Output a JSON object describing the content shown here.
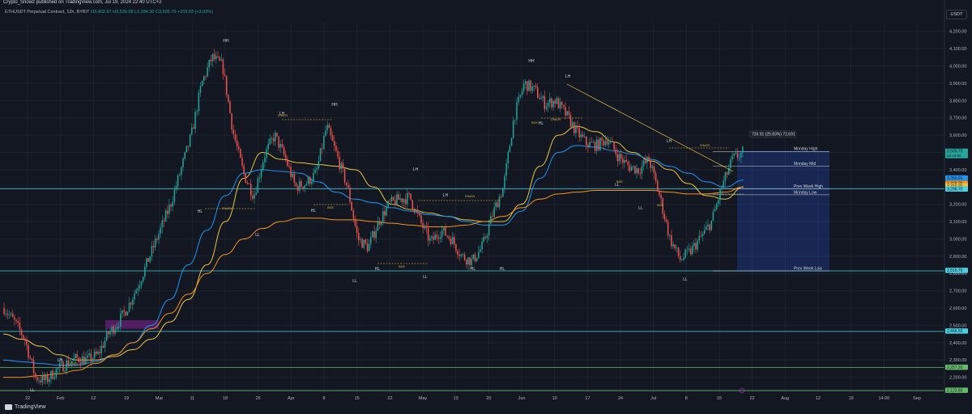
{
  "header": {
    "published": "Crypto_Snowz published on TradingView.com, Jul 19, 2024 22:40 UTC+2",
    "symbol": "ETHUSDT Perpetual Contract, 12h, BYBIT",
    "o_label": "O",
    "ohlc": "3,402.67 H3,539.98 L3,394.30 C3,505.70 +103.03 (+3.03%)",
    "currency": "USDT"
  },
  "footer": {
    "brand": "TradingView"
  },
  "chart_data": {
    "type": "candlestick",
    "timeframe": "12h",
    "ylim": [
      2100,
      4250
    ],
    "y_ticks": [
      "2,200.00",
      "2,300.00",
      "2,400.00",
      "2,500.00",
      "2,600.00",
      "2,700.00",
      "2,800.00",
      "2,900.00",
      "3,000.00",
      "3,100.00",
      "3,200.00",
      "3,300.00",
      "3,400.00",
      "3,500.00",
      "3,600.00",
      "3,700.00",
      "3,800.00",
      "3,900.00",
      "4,000.00",
      "4,100.00",
      "4,200.00"
    ],
    "x_ticks": [
      "22",
      "Feb",
      "12",
      "19",
      "Mar",
      "11",
      "18",
      "25",
      "Apr",
      "8",
      "15",
      "22",
      "May",
      "13",
      "20",
      "Jun",
      "10",
      "17",
      "24",
      "Jul",
      "8",
      "15",
      "22",
      "Aug",
      "12",
      "19",
      "14:00",
      "Sep"
    ],
    "price_path": [
      2600,
      2520,
      2420,
      2200,
      2180,
      2240,
      2280,
      2310,
      2300,
      2330,
      2450,
      2520,
      2620,
      2750,
      2900,
      3050,
      3200,
      3400,
      3600,
      3900,
      4050,
      4000,
      3620,
      3380,
      3250,
      3480,
      3600,
      3470,
      3300,
      3320,
      3380,
      3650,
      3480,
      3300,
      3000,
      2950,
      3100,
      3200,
      3230,
      3240,
      3100,
      2980,
      3050,
      3000,
      2900,
      2870,
      2960,
      3150,
      3300,
      3700,
      3900,
      3860,
      3780,
      3800,
      3720,
      3620,
      3550,
      3540,
      3580,
      3480,
      3420,
      3400,
      3460,
      3250,
      3000,
      2880,
      2930,
      3010,
      3100,
      3300,
      3460,
      3500
    ],
    "series": [
      {
        "name": "MA fast",
        "color": "#e8c547",
        "values": [
          2450,
          2420,
          2380,
          2330,
          2300,
          2300,
          2320,
          2360,
          2420,
          2520,
          2650,
          2850,
          3100,
          3350,
          3500,
          3460,
          3440,
          3430,
          3420,
          3400,
          3300,
          3200,
          3170,
          3150,
          3130,
          3110,
          3100,
          3100,
          3200,
          3420,
          3600,
          3650,
          3620,
          3560,
          3500,
          3450,
          3400,
          3320,
          3250,
          3230,
          3300
        ]
      },
      {
        "name": "MA mid",
        "color": "#2196f3",
        "values": [
          2300,
          2290,
          2280,
          2270,
          2270,
          2290,
          2330,
          2400,
          2500,
          2650,
          2850,
          3050,
          3250,
          3380,
          3400,
          3390,
          3380,
          3330,
          3270,
          3230,
          3210,
          3180,
          3160,
          3140,
          3130,
          3100,
          3080,
          3080,
          3160,
          3350,
          3500,
          3540,
          3530,
          3510,
          3490,
          3460,
          3420,
          3380,
          3330,
          3300,
          3340
        ]
      },
      {
        "name": "MA slow",
        "color": "#f7931a",
        "values": [
          2200,
          2200,
          2210,
          2220,
          2240,
          2280,
          2330,
          2400,
          2480,
          2570,
          2680,
          2800,
          2910,
          3000,
          3060,
          3100,
          3120,
          3120,
          3110,
          3110,
          3100,
          3090,
          3080,
          3070,
          3070,
          3080,
          3100,
          3130,
          3180,
          3230,
          3260,
          3270,
          3280,
          3280,
          3280,
          3280,
          3270,
          3260,
          3260,
          3270,
          3300
        ]
      }
    ],
    "levels": [
      {
        "name": "Monday High",
        "price": 3505.7,
        "color": "#d1d4dc"
      },
      {
        "name": "Monday Mid",
        "price": 3420,
        "color": "#d1d4dc"
      },
      {
        "name": "Prev Week High",
        "price": 3290,
        "color": "#d1d4dc"
      },
      {
        "name": "Monday Low",
        "price": 3255,
        "color": "#d1d4dc"
      },
      {
        "name": "Prev Week Low",
        "price": 2815,
        "color": "#d1d4dc"
      }
    ],
    "hlines": [
      {
        "price": 3290,
        "color": "#4dd0e1"
      },
      {
        "price": 2815,
        "color": "#4dd0e1"
      },
      {
        "price": 2465,
        "color": "#4dd0e1"
      },
      {
        "price": 2257,
        "color": "#66bb6a"
      },
      {
        "price": 2123,
        "color": "#66bb6a"
      }
    ],
    "price_badges": [
      {
        "text": "3,505.70",
        "sub": "03:19:50",
        "price": 3505.7,
        "color": "#26a69a"
      },
      {
        "text": "3,350.91",
        "price": 3350.9,
        "color": "#2196f3"
      },
      {
        "text": "3,308.00",
        "price": 3320,
        "color": "#f7931a"
      },
      {
        "text": "3,310.20",
        "price": 3305,
        "color": "#e8c547"
      },
      {
        "text": "3,298.70",
        "price": 3287,
        "color": "#4dd0e1"
      },
      {
        "text": "2,816.70",
        "price": 2816.7,
        "color": "#4dd0e1"
      },
      {
        "text": "2,466.50",
        "price": 2466.5,
        "color": "#4dd0e1"
      },
      {
        "text": "2,257.20",
        "price": 2257.2,
        "color": "#66bb6a"
      },
      {
        "text": "2,123.80",
        "price": 2123.8,
        "color": "#66bb6a"
      }
    ],
    "measure_label": "726.91 (25.83%) 72,691",
    "annotations": [
      "HH",
      "HH",
      "HH",
      "LH",
      "LH",
      "LH",
      "LH",
      "LH",
      "HL",
      "HL",
      "HL",
      "HL",
      "HL",
      "HL",
      "LL",
      "LL",
      "LL",
      "LL",
      "LL",
      "LL",
      "HL",
      "LL",
      "HL",
      "LL",
      "CHoCH",
      "CHoCH",
      "CHoCH",
      "CHoCH",
      "CHoCH",
      "BOS",
      "BOS",
      "BOS",
      "BOS",
      "BOS",
      "BOS"
    ]
  },
  "colors": {
    "bg": "#131722",
    "up": "#26a69a",
    "down": "#ef5350",
    "grid": "#1e222d",
    "text": "#b2b5be"
  }
}
